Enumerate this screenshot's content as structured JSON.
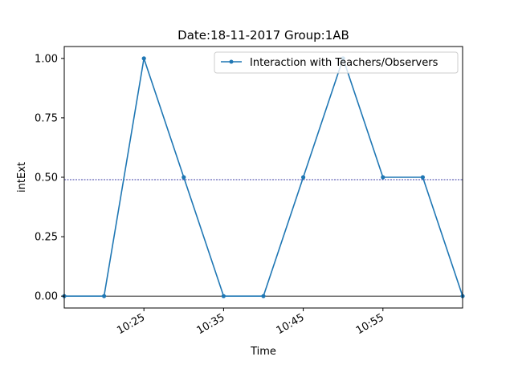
{
  "chart_data": {
    "type": "line",
    "title": "Date:18-11-2017  Group:1AB",
    "xlabel": "Time",
    "ylabel": "intExt",
    "x": [
      "10:15",
      "10:20",
      "10:25",
      "10:30",
      "10:35",
      "10:40",
      "10:45",
      "10:50",
      "10:55",
      "11:00",
      "11:05"
    ],
    "xlim": [
      "10:15",
      "11:05"
    ],
    "ylim": [
      -0.05,
      1.05
    ],
    "x_ticks": [
      "10:25",
      "10:35",
      "10:45",
      "10:55"
    ],
    "y_ticks": [
      "0.00",
      "0.25",
      "0.50",
      "0.75",
      "1.00"
    ],
    "series": [
      {
        "name": "Interaction with Teachers/Observers",
        "color": "#1f77b4",
        "values": [
          0,
          0,
          1.0,
          0.5,
          0,
          0,
          0.5,
          1.0,
          0.5,
          0.5,
          0
        ]
      }
    ],
    "reference_lines": [
      {
        "value": 0.49,
        "style": "dotted",
        "color": "#00008b"
      },
      {
        "value": 0,
        "style": "solid",
        "color": "#000000"
      }
    ],
    "legend": {
      "position": "top-right"
    },
    "grid": false
  }
}
